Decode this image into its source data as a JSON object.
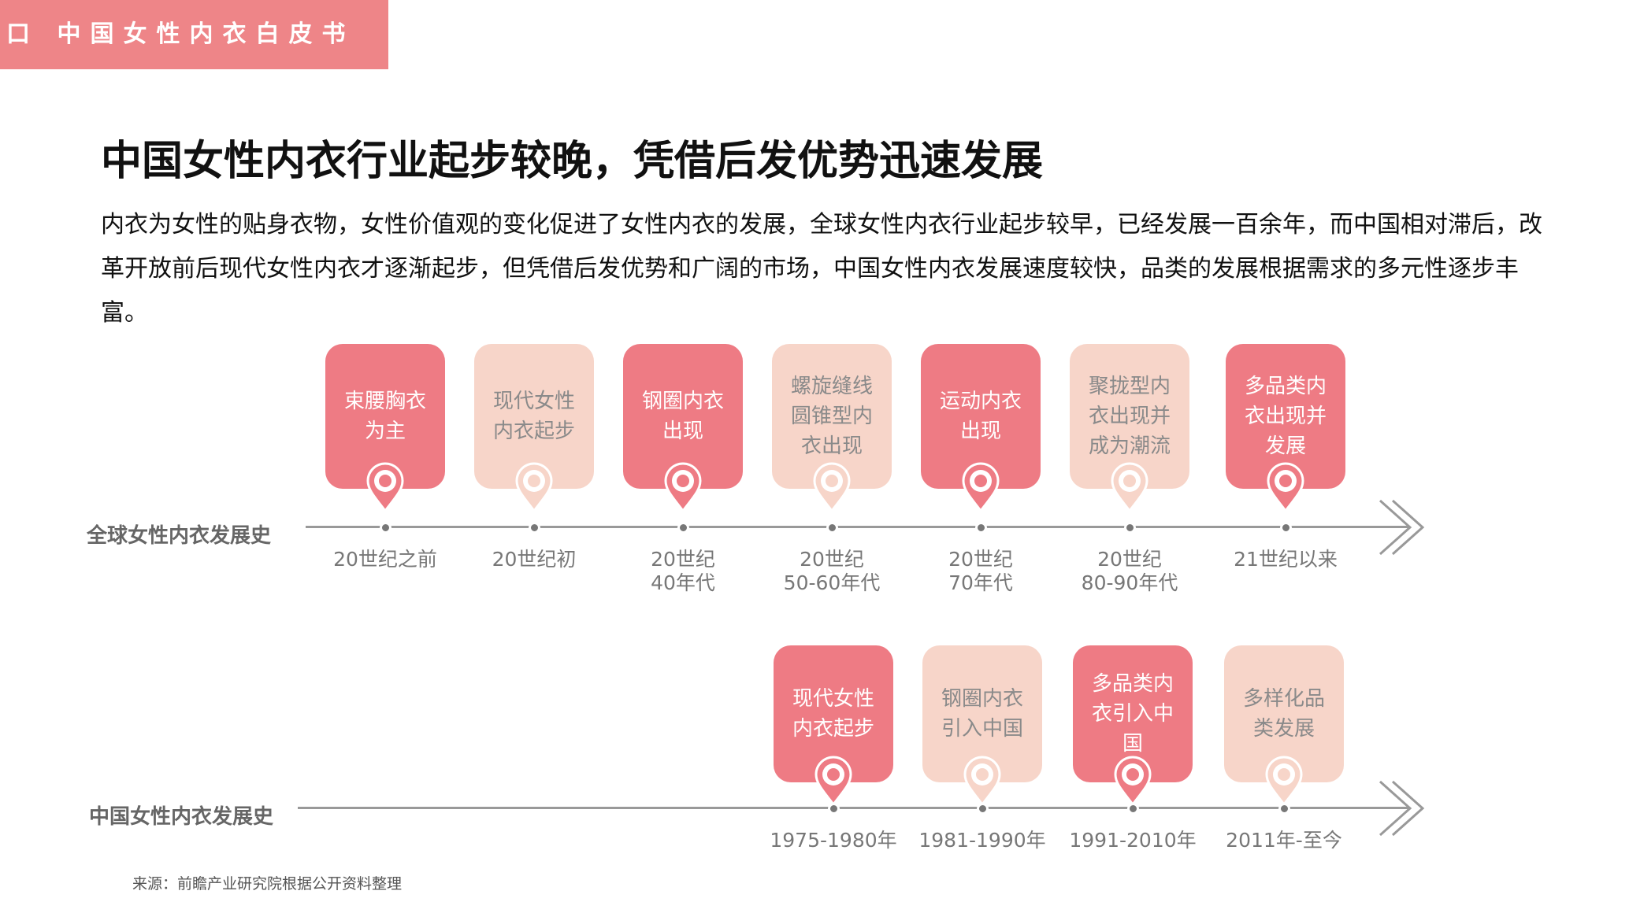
{
  "header": {
    "tab_label": "口 中国女性内衣白皮书"
  },
  "title": "中国女性内衣行业起步较晚，凭借后发优势迅速发展",
  "intro": "内衣为女性的贴身衣物，女性价值观的变化促进了女性内衣的发展，全球女性内衣行业起步较早，已经发展一百余年，而中国相对滞后，改革开放前后现代女性内衣才逐渐起步，但凭借后发优势和广阔的市场，中国女性内衣发展速度较快，品类的发展根据需求的多元性逐步丰富。",
  "colors": {
    "accent_dark": "#ee7b84",
    "accent_light": "#f7d5c9",
    "axis": "#999999",
    "header": "#ee8588"
  },
  "global_timeline": {
    "label": "全球女性内衣发展史",
    "events": [
      {
        "text": "束腰胸衣为主",
        "period": "20世纪之前",
        "style": "dark"
      },
      {
        "text": "现代女性内衣起步",
        "period": "20世纪初",
        "style": "light"
      },
      {
        "text": "钢圈内衣出现",
        "period": "20世纪\n40年代",
        "style": "dark"
      },
      {
        "text": "螺旋缝线圆锥型内衣出现",
        "period": "20世纪\n50-60年代",
        "style": "light"
      },
      {
        "text": "运动内衣出现",
        "period": "20世纪\n70年代",
        "style": "dark"
      },
      {
        "text": "聚拢型内衣出现并成为潮流",
        "period": "20世纪\n80-90年代",
        "style": "light"
      },
      {
        "text": "多品类内衣出现并发展",
        "period": "21世纪以来",
        "style": "dark"
      }
    ]
  },
  "china_timeline": {
    "label": "中国女性内衣发展史",
    "events": [
      {
        "text": "现代女性内衣起步",
        "period": "1975-1980年",
        "style": "dark"
      },
      {
        "text": "钢圈内衣引入中国",
        "period": "1981-1990年",
        "style": "light"
      },
      {
        "text": "多品类内衣引入中国",
        "period": "1991-2010年",
        "style": "dark"
      },
      {
        "text": "多样化品类发展",
        "period": "2011年-至今",
        "style": "light"
      }
    ]
  },
  "source": "来源：前瞻产业研究院根据公开资料整理"
}
